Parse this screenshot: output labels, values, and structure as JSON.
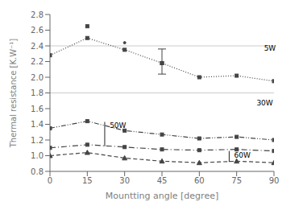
{
  "chart_data": {
    "type": "line",
    "xlabel": "Mountting angle [degree]",
    "ylabel": "Thermal resistance [K.W⁻¹]",
    "xlim": [
      0,
      90
    ],
    "ylim": [
      0.8,
      2.8
    ],
    "xticks": [
      0,
      15,
      30,
      45,
      60,
      75,
      90
    ],
    "yticks": [
      0.8,
      {
        "value": 1.0,
        "label": "1.0"
      },
      1.2,
      1.4,
      1.6,
      1.8,
      {
        "value": 2.0,
        "label": "2.0"
      },
      2.2,
      2.4,
      2.6,
      2.8
    ],
    "grid": false,
    "hlines": [
      1.8,
      2.4
    ],
    "series": [
      {
        "name": "5W",
        "color": "#444444",
        "line_style": "dotted",
        "marker": "square",
        "x": [
          0,
          15,
          30,
          45,
          60,
          75,
          90
        ],
        "values": [
          2.28,
          2.5,
          2.35,
          2.18,
          2.0,
          2.02,
          1.95
        ],
        "extra_points": [
          {
            "x": 15,
            "y": 2.65,
            "marker": "square"
          },
          {
            "x": 30,
            "y": 2.44,
            "marker": "point"
          }
        ],
        "error": {
          "x": 45,
          "minus": 0.14,
          "plus": 0.18
        }
      },
      {
        "name": "30W",
        "color": "#444444",
        "line_style": "dashdotdot",
        "marker": "square",
        "x": [
          0,
          15,
          30,
          45,
          60,
          75,
          90
        ],
        "values": [
          1.35,
          1.44,
          1.32,
          1.27,
          1.22,
          1.24,
          1.2
        ]
      },
      {
        "name": "50W",
        "color": "#444444",
        "line_style": "dashdot",
        "marker": "square",
        "x": [
          0,
          15,
          30,
          45,
          60,
          75,
          90
        ],
        "values": [
          1.1,
          1.14,
          1.11,
          1.08,
          1.07,
          1.08,
          1.06
        ]
      },
      {
        "name": "60W",
        "color": "#444444",
        "line_style": "dashed",
        "marker": "triangle",
        "x": [
          0,
          15,
          30,
          45,
          60,
          75,
          90
        ],
        "values": [
          1.0,
          1.04,
          0.97,
          0.93,
          0.91,
          0.93,
          0.91
        ]
      }
    ],
    "annotations": [
      {
        "text": "5W",
        "x": 86,
        "y": 2.37
      },
      {
        "text": "30W",
        "x": 83,
        "y": 1.67
      },
      {
        "text": "50W",
        "x": 24,
        "y": 1.38,
        "bracket": {
          "x": 22,
          "y_lo": 1.12,
          "y_hi": 1.43
        }
      },
      {
        "text": "60W",
        "x": 74,
        "y": 1.01,
        "bracket": {
          "x": 72,
          "y_lo": 0.92,
          "y_hi": 1.06
        }
      }
    ]
  }
}
